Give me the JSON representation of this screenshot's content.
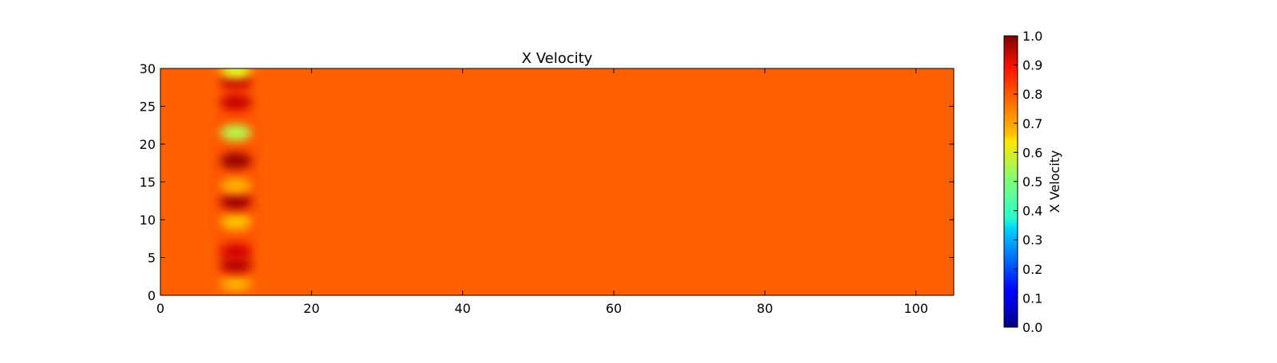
{
  "chart_data": {
    "type": "heatmap",
    "title": "X Velocity",
    "xlabel": "",
    "ylabel": "",
    "xlim": [
      0,
      105
    ],
    "ylim": [
      0,
      30
    ],
    "x_ticks": [
      0,
      20,
      40,
      60,
      80,
      100
    ],
    "y_ticks": [
      0,
      5,
      10,
      15,
      20,
      25,
      30
    ],
    "x_tick_labels": [
      "0",
      "20",
      "40",
      "60",
      "80",
      "100"
    ],
    "y_tick_labels": [
      "0",
      "5",
      "10",
      "15",
      "20",
      "25",
      "30"
    ],
    "background_value": 0.78,
    "features": [
      {
        "x": 10,
        "y": 1.5,
        "value": 0.7
      },
      {
        "x": 10,
        "y": 4.0,
        "value": 0.95
      },
      {
        "x": 10,
        "y": 5.8,
        "value": 0.92
      },
      {
        "x": 10,
        "y": 9.7,
        "value": 0.68
      },
      {
        "x": 10,
        "y": 12.4,
        "value": 0.97
      },
      {
        "x": 10,
        "y": 14.5,
        "value": 0.7
      },
      {
        "x": 10,
        "y": 17.8,
        "value": 0.98
      },
      {
        "x": 10,
        "y": 21.5,
        "value": 0.55
      },
      {
        "x": 10,
        "y": 25.5,
        "value": 0.93
      },
      {
        "x": 10,
        "y": 28.3,
        "value": 0.93
      },
      {
        "x": 10,
        "y": 29.7,
        "value": 0.6
      }
    ],
    "colormap": "jet",
    "colorbar": {
      "label": "X Velocity",
      "range": [
        0.0,
        1.0
      ],
      "ticks": [
        0.0,
        0.1,
        0.2,
        0.3,
        0.4,
        0.5,
        0.6,
        0.7,
        0.8,
        0.9,
        1.0
      ],
      "tick_labels": [
        "0.0",
        "0.1",
        "0.2",
        "0.3",
        "0.4",
        "0.5",
        "0.6",
        "0.7",
        "0.8",
        "0.9",
        "1.0"
      ]
    }
  }
}
